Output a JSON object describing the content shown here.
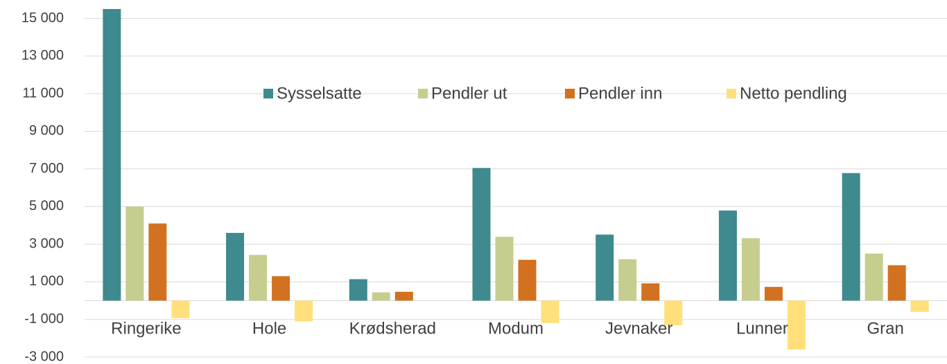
{
  "chart_data": {
    "type": "bar",
    "categories": [
      "Ringerike",
      "Hole",
      "Krødsherad",
      "Modum",
      "Jevnaker",
      "Lunner",
      "Gran"
    ],
    "series": [
      {
        "name": "Sysselsatte",
        "color": "#3e8a8e",
        "values": [
          15500,
          3600,
          1140,
          7050,
          3510,
          4790,
          6780
        ]
      },
      {
        "name": "Pendler ut",
        "color": "#c6cd8f",
        "values": [
          5000,
          2430,
          440,
          3390,
          2200,
          3320,
          2500
        ]
      },
      {
        "name": "Pendler inn",
        "color": "#d2711f",
        "values": [
          4100,
          1300,
          470,
          2170,
          920,
          730,
          1880
        ]
      },
      {
        "name": "Netto pendling",
        "color": "#ffe07a",
        "values": [
          -930,
          -1100,
          0,
          -1190,
          -1300,
          -2600,
          -600
        ]
      }
    ],
    "ylim": [
      -3000,
      15500
    ],
    "yticks": [
      {
        "value": -3000,
        "label": "-3 000"
      },
      {
        "value": -1000,
        "label": "-1 000"
      },
      {
        "value": 1000,
        "label": "1 000"
      },
      {
        "value": 3000,
        "label": "3 000"
      },
      {
        "value": 5000,
        "label": "5 000"
      },
      {
        "value": 7000,
        "label": "7 000"
      },
      {
        "value": 9000,
        "label": "9 000"
      },
      {
        "value": 11000,
        "label": "11 000"
      },
      {
        "value": 13000,
        "label": "13 000"
      },
      {
        "value": 15000,
        "label": "15 000"
      }
    ],
    "grid": true
  }
}
